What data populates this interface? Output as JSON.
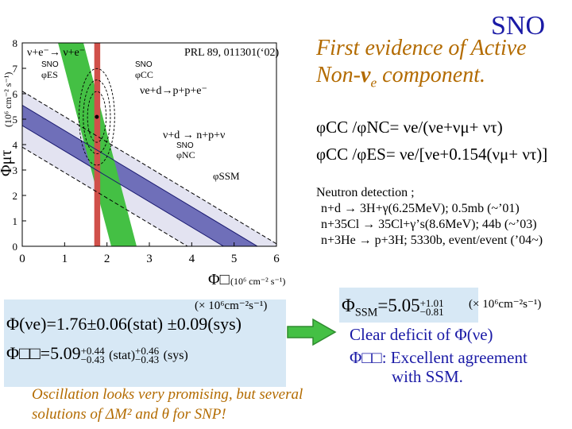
{
  "slide_title": "SNO",
  "headline": {
    "line1": "First evidence of Active",
    "line2_prefix": "Non-",
    "line2_nu": "ν",
    "line2_sub": "e",
    "line2_suffix": " component."
  },
  "equations": {
    "eq1": "φCC /φNC= νe/(νe+νμ+ ντ)",
    "eq2": "φCC /φES= νe/[νe+0.154(νμ+ ντ)]"
  },
  "neutron_detection": {
    "heading": "Neutron detection ;",
    "lines": [
      "n+d → 3H+γ(6.25MeV); 0.5mb (~’01)",
      "n+35Cl → 35Cl+γ’s(8.6MeV); 44b (~’03)",
      "n+3He → p+3H; 5330b, event/event (’04~)"
    ]
  },
  "plot": {
    "citation": "PRL 89, 011301(‘02)",
    "ylabel": "Φμτ",
    "yunit": "(10⁶ cm⁻² s⁻¹)",
    "xlabel": "Φ□",
    "xunit": "(10⁶ cm⁻² s⁻¹)",
    "x_ticks": [
      "0",
      "1",
      "2",
      "3",
      "4",
      "5",
      "6"
    ],
    "y_ticks": [
      "0",
      "1",
      "2",
      "3",
      "4",
      "5",
      "6",
      "7",
      "8"
    ],
    "band_labels": {
      "es": "ν+e⁻→ ν+e⁻",
      "cc": "νe+d→p+p+e⁻",
      "nc": "ν+d → n+p+ν",
      "ssm": "φSSM"
    },
    "small_labels": {
      "sno_es": "SNO",
      "phi_es": "φES",
      "sno_cc": "SNO",
      "phi_cc": "φCC",
      "sno_nc": "SNO",
      "phi_nc": "φNC"
    },
    "colors": {
      "es_band": "#44c044",
      "cc_band": "#d0504a",
      "nc_band": "#3a3aa0",
      "ssm_band": "#b0b0d8"
    }
  },
  "results": {
    "unit": "(× 10⁶cm⁻²s⁻¹)",
    "phi_e": "Φ(νe)=1.76±0.06(stat) ±0.09(sys)",
    "phi_mutau_prefix": "Φ□□=5.09",
    "phi_mutau_stat_up": "+0.44",
    "phi_mutau_stat_dn": "−0.43",
    "phi_mutau_stat_label": "(stat)",
    "phi_mutau_sys_up": "+0.46",
    "phi_mutau_sys_dn": "−0.43",
    "phi_mutau_sys_label": "(sys)"
  },
  "ssm_box": {
    "phi": "Φ",
    "sub": "SSM",
    "value": "=5.05",
    "up": "+1.01",
    "dn": "−0.81",
    "unit": "(× 10⁶cm⁻²s⁻¹)"
  },
  "conclusions": {
    "deficit": "Clear deficit of Φ(νe)",
    "agreement": "Φ□□: Excellent agreement",
    "agreement2": "with SSM."
  },
  "oscillation": {
    "line1": "Oscillation looks very promising, but several",
    "line2": "solutions of ΔM² and θ for SNP!"
  }
}
